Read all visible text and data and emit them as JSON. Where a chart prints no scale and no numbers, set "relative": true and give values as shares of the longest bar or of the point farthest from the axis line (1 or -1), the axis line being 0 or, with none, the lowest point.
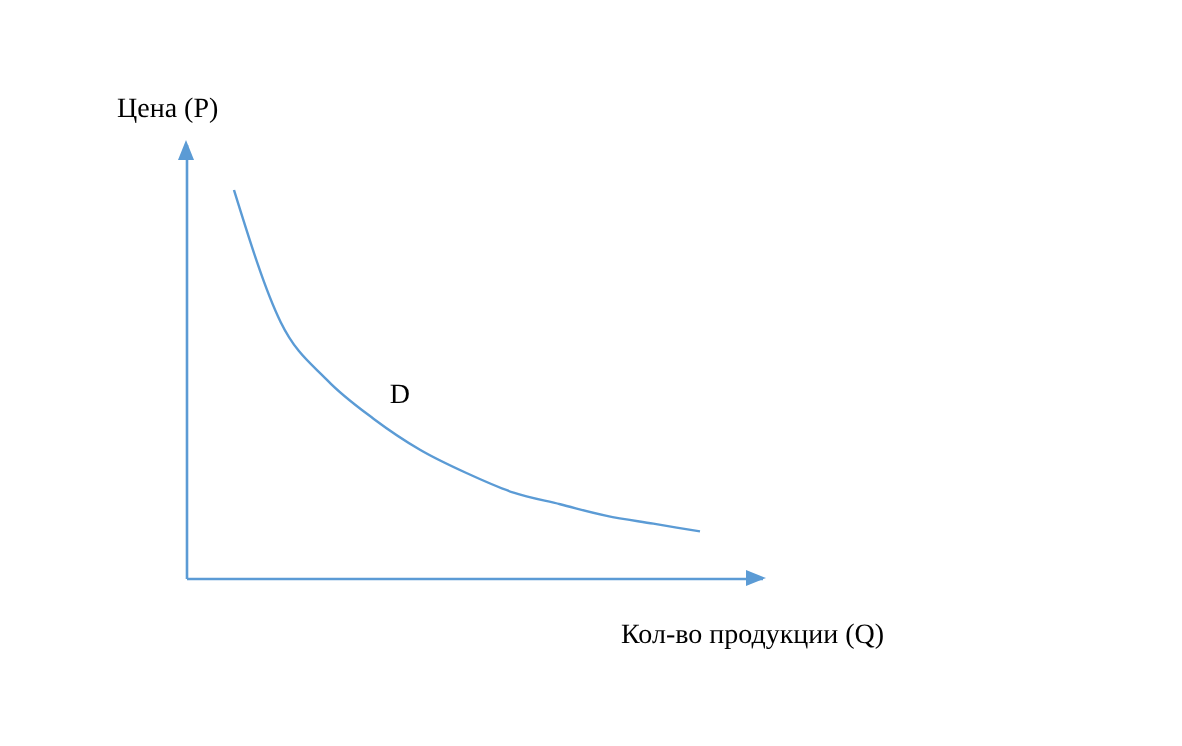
{
  "chart_data": {
    "type": "line",
    "relative": true,
    "xlabel": "Кол-во продукции (Q)",
    "ylabel": "Цена (P)",
    "categories": [
      null,
      null,
      null,
      null,
      null,
      null,
      null,
      null,
      null,
      null,
      null
    ],
    "series": [
      {
        "name": "D",
        "color": "#5b9bd5",
        "values": [
          1,
          0.66,
          0.51,
          0.41,
          0.33,
          0.27,
          0.22,
          0.19,
          0.16,
          0.14,
          0.12
        ]
      }
    ],
    "legend": false,
    "grid": false,
    "marker": "none",
    "line_style": "solid"
  }
}
